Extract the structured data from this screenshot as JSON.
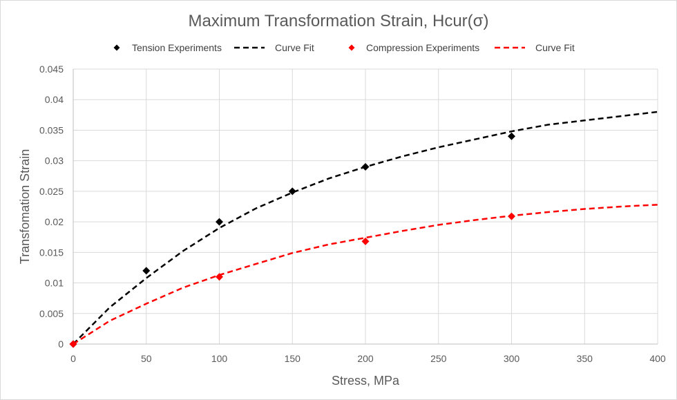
{
  "chart_data": {
    "type": "scatter",
    "title": "Maximum Transformation Strain, Hcur(σ)",
    "xlabel": "Stress, MPa",
    "ylabel": "Transfomation Strain",
    "xlim": [
      0,
      400
    ],
    "ylim": [
      0,
      0.045
    ],
    "x_ticks": [
      0,
      50,
      100,
      150,
      200,
      250,
      300,
      350,
      400
    ],
    "x_tick_labels": [
      "0",
      "50",
      "100",
      "150",
      "200",
      "250",
      "300",
      "350",
      "400"
    ],
    "y_ticks": [
      0,
      0.005,
      0.01,
      0.015,
      0.02,
      0.025,
      0.03,
      0.035,
      0.04,
      0.045
    ],
    "y_tick_labels": [
      "0",
      "0.005",
      "0.01",
      "0.015",
      "0.02",
      "0.025",
      "0.03",
      "0.035",
      "0.04",
      "0.045"
    ],
    "grid": "vertical and horizontal",
    "legend_position": "top",
    "series": [
      {
        "name": "Tension Experiments",
        "kind": "markers",
        "marker": "diamond",
        "color": "#000000",
        "x": [
          0,
          50,
          100,
          150,
          200,
          300
        ],
        "y": [
          0,
          0.012,
          0.02,
          0.025,
          0.029,
          0.034
        ]
      },
      {
        "name": "Curve Fit",
        "kind": "dashed-line",
        "color": "#000000",
        "x": [
          0,
          25,
          50,
          75,
          100,
          125,
          150,
          175,
          200,
          225,
          250,
          275,
          300,
          325,
          350,
          375,
          400
        ],
        "y": [
          0,
          0.006,
          0.0108,
          0.0152,
          0.019,
          0.0222,
          0.0248,
          0.0271,
          0.029,
          0.0307,
          0.0322,
          0.0335,
          0.0348,
          0.0359,
          0.0366,
          0.0373,
          0.038
        ]
      },
      {
        "name": "Compression Experiments",
        "kind": "markers",
        "marker": "diamond",
        "color": "#ff0000",
        "x": [
          0,
          100,
          200,
          300
        ],
        "y": [
          0,
          0.011,
          0.0168,
          0.0209
        ]
      },
      {
        "name": "Curve Fit",
        "kind": "dashed-line",
        "color": "#ff0000",
        "x": [
          0,
          25,
          50,
          75,
          100,
          125,
          150,
          175,
          200,
          225,
          250,
          275,
          300,
          325,
          350,
          375,
          400
        ],
        "y": [
          0,
          0.0038,
          0.0066,
          0.0092,
          0.0113,
          0.0131,
          0.0149,
          0.0163,
          0.0174,
          0.0185,
          0.0195,
          0.0203,
          0.021,
          0.0216,
          0.0221,
          0.0225,
          0.0228
        ]
      }
    ]
  }
}
